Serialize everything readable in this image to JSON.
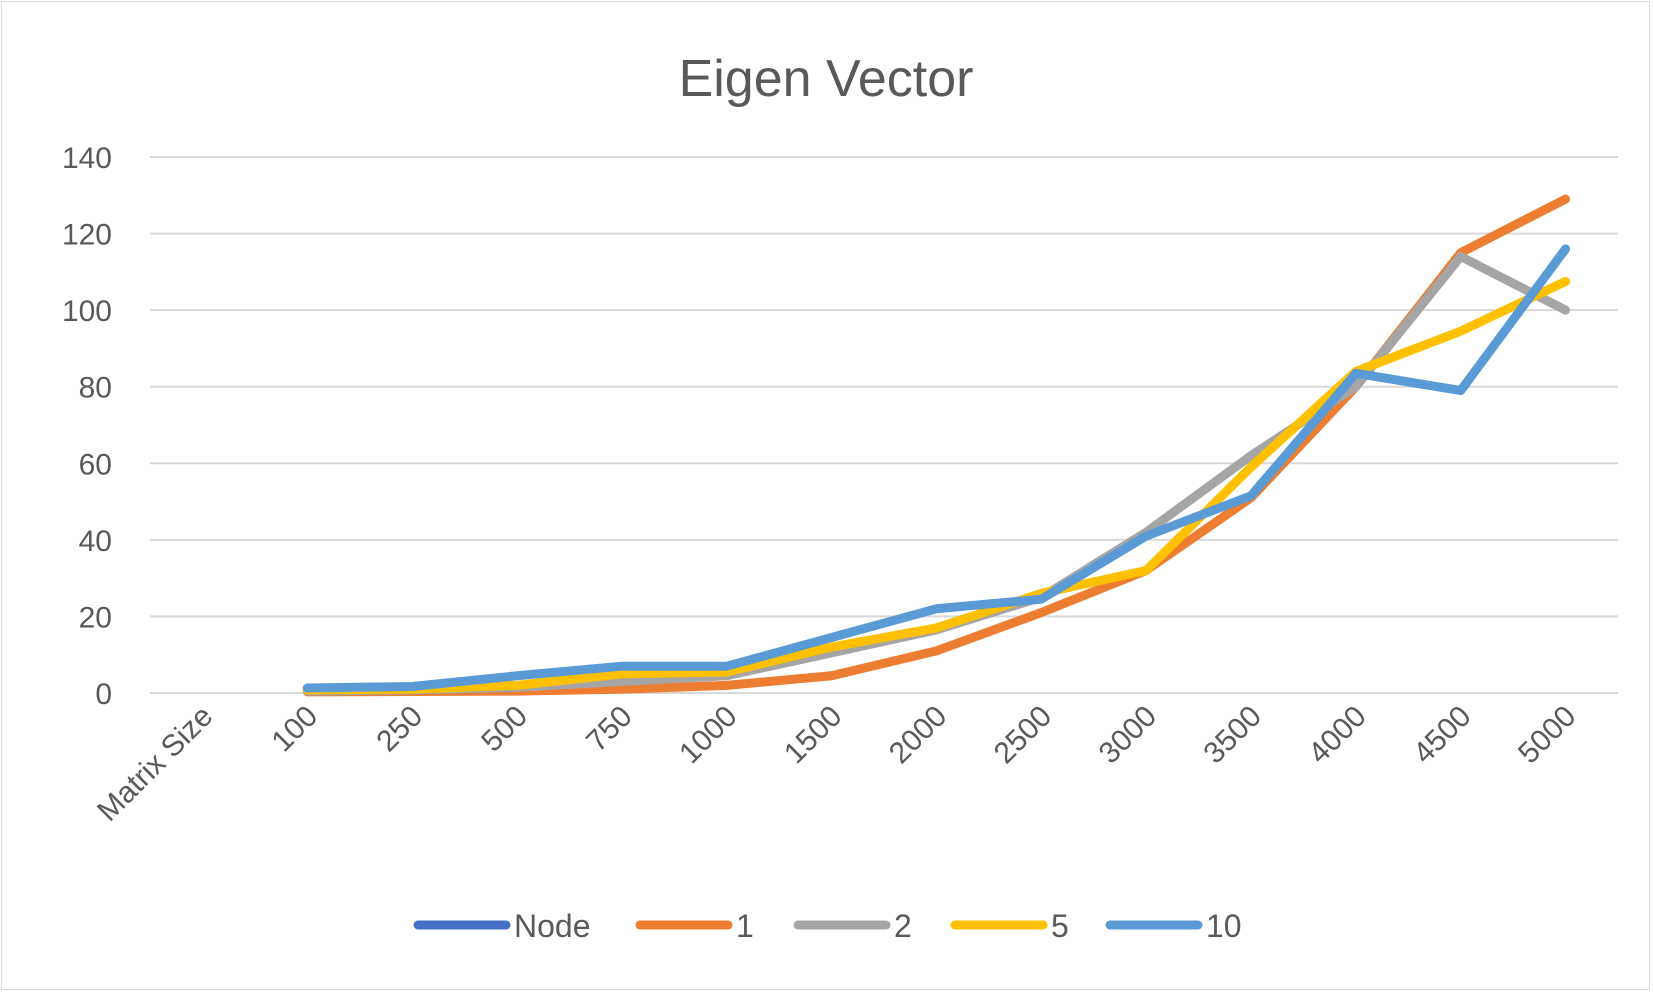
{
  "chart_data": {
    "type": "line",
    "title": "Eigen Vector",
    "xlabel": "",
    "ylabel": "",
    "categories": [
      "Matrix Size",
      "100",
      "250",
      "500",
      "750",
      "1000",
      "1500",
      "2000",
      "2500",
      "3000",
      "3500",
      "4000",
      "4500",
      "5000"
    ],
    "ylim": [
      0,
      140
    ],
    "yticks": [
      0,
      20,
      40,
      60,
      80,
      100,
      120,
      140
    ],
    "grid": true,
    "legend_position": "bottom",
    "series": [
      {
        "name": "Node",
        "color": "#4472c4",
        "values": [
          null,
          null,
          null,
          null,
          null,
          null,
          null,
          null,
          null,
          null,
          null,
          null,
          null,
          null
        ]
      },
      {
        "name": "1",
        "color": "#ed7d31",
        "values": [
          null,
          0.3,
          0.4,
          0.5,
          1,
          2,
          4.5,
          11,
          21,
          32,
          51,
          80,
          115,
          129
        ]
      },
      {
        "name": "2",
        "color": "#a5a5a5",
        "values": [
          null,
          0.5,
          0.8,
          1.5,
          3,
          4.5,
          10.5,
          16.5,
          25,
          42,
          62,
          80,
          114,
          100
        ]
      },
      {
        "name": "5",
        "color": "#ffc000",
        "values": [
          null,
          0.8,
          1,
          2,
          5,
          5.5,
          12,
          17,
          26,
          32,
          59,
          84,
          94.5,
          107.5
        ]
      },
      {
        "name": "10",
        "color": "#5b9bd5",
        "values": [
          null,
          1.3,
          1.7,
          4.5,
          7,
          7,
          14.5,
          22,
          24.5,
          41,
          51.5,
          83.5,
          79,
          116
        ]
      }
    ]
  }
}
